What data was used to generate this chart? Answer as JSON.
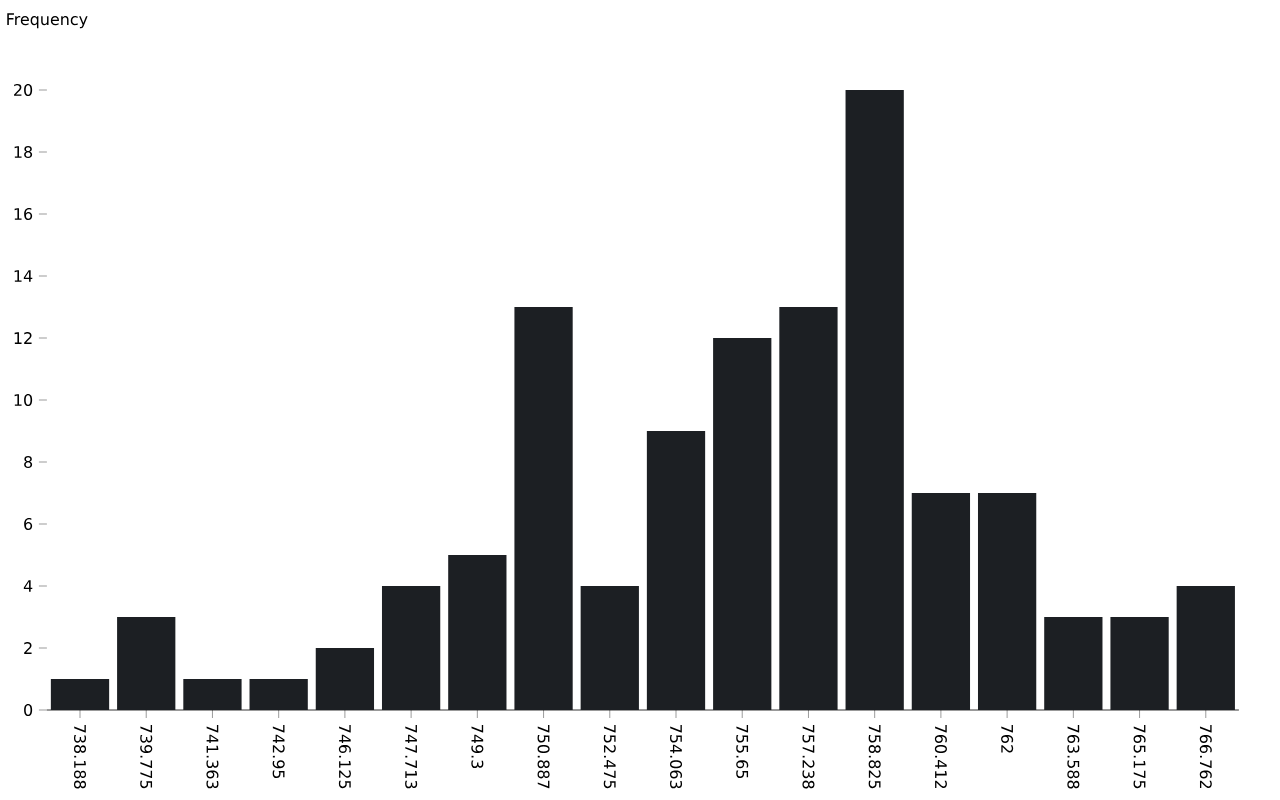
{
  "chart_data": {
    "type": "bar",
    "ylabel": "Frequency",
    "categories": [
      "738.188",
      "739.775",
      "741.363",
      "742.95",
      "746.125",
      "747.713",
      "749.3",
      "750.887",
      "752.475",
      "754.063",
      "755.65",
      "757.238",
      "758.825",
      "760.412",
      "762",
      "763.588",
      "765.175",
      "766.762"
    ],
    "values": [
      1,
      3,
      1,
      1,
      2,
      4,
      5,
      13,
      4,
      9,
      12,
      13,
      20,
      7,
      7,
      3,
      3,
      4
    ],
    "color": "#1c1f23",
    "ylim": [
      0,
      20
    ],
    "yticks": [
      0,
      2,
      4,
      6,
      8,
      10,
      12,
      14,
      16,
      18,
      20
    ]
  }
}
